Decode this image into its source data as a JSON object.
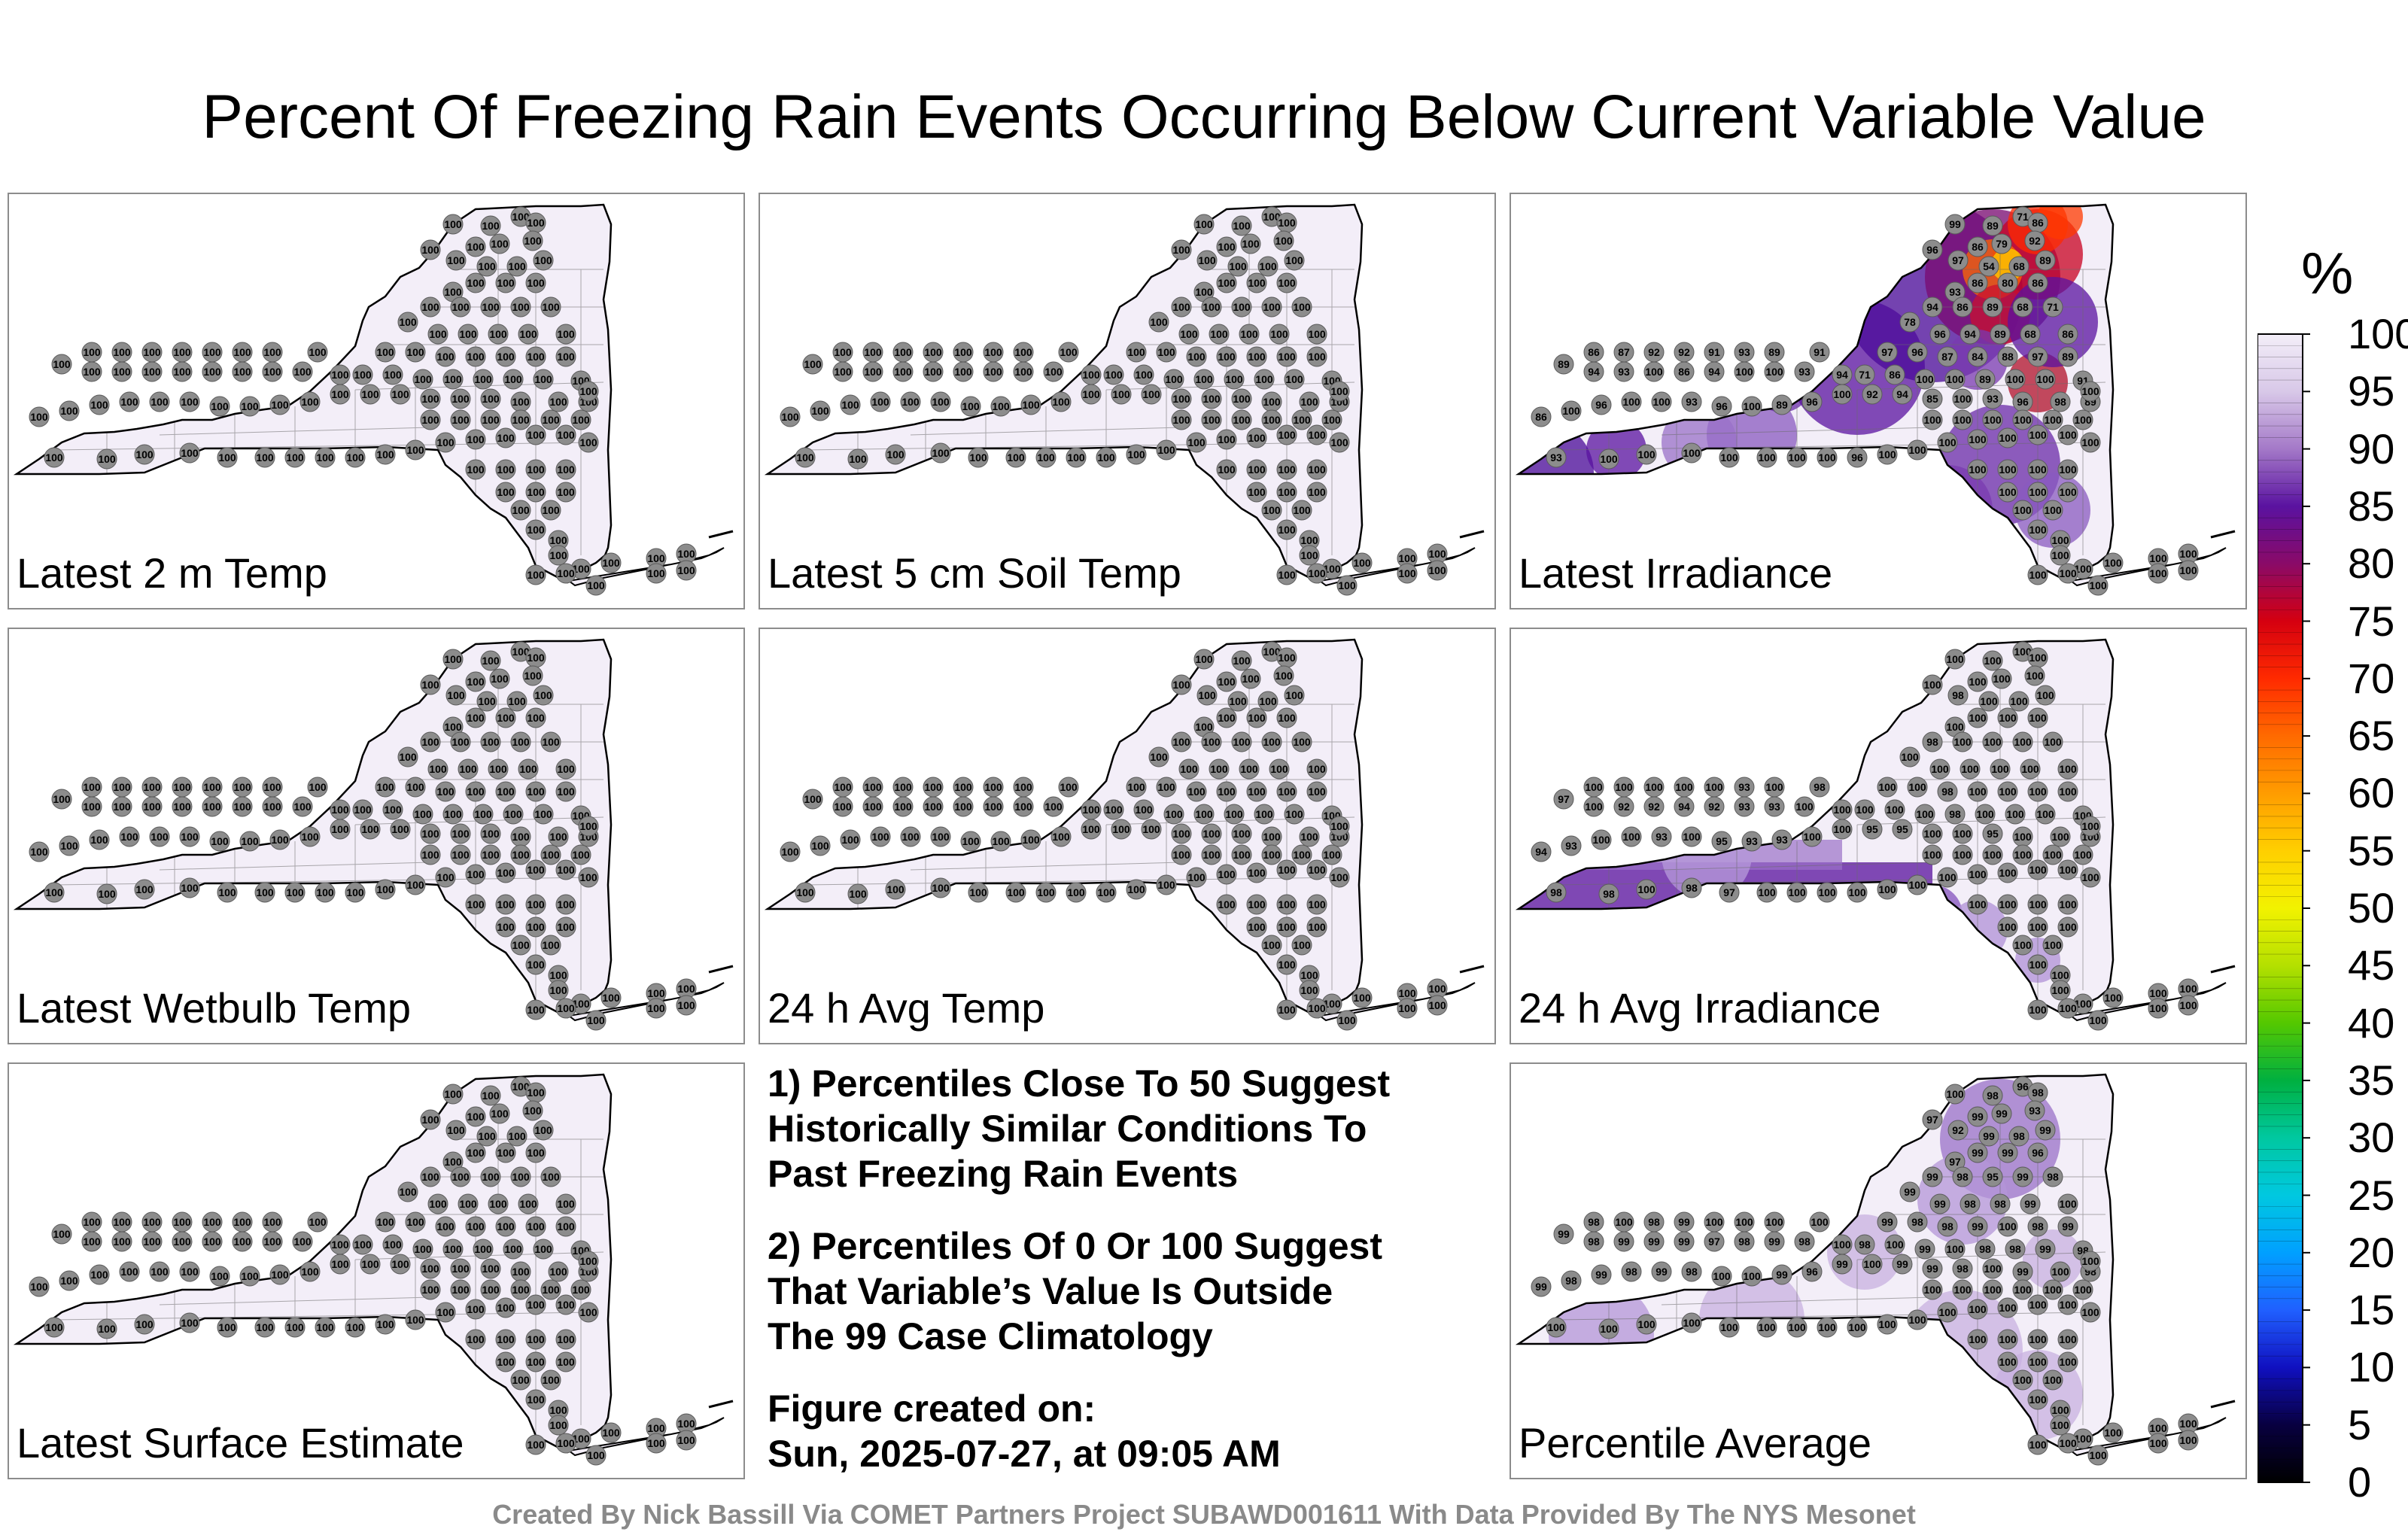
{
  "title": "Percent Of Freezing Rain Events Occurring Below Current Variable Value",
  "panels": [
    {
      "label": "Latest 2 m Temp",
      "values": [
        100,
        100,
        100,
        100,
        100,
        100,
        100,
        100,
        100,
        100,
        100,
        100,
        100,
        100,
        100,
        100,
        100,
        100,
        100,
        100,
        100,
        100,
        100,
        100,
        100,
        100,
        100,
        100,
        100,
        100,
        100,
        100,
        100,
        100,
        100,
        100,
        100,
        100,
        100,
        100,
        100,
        100,
        100,
        100,
        100,
        100,
        100,
        100,
        100,
        100,
        100,
        100,
        100,
        100,
        100,
        100,
        100,
        100,
        100,
        100,
        100,
        100,
        100,
        100,
        100,
        100,
        100,
        100,
        100,
        100,
        100,
        100,
        100,
        100,
        100,
        100,
        100,
        100,
        100,
        100,
        100,
        100,
        100,
        100,
        100,
        100,
        100,
        100,
        100,
        100,
        100,
        100,
        100,
        100,
        100,
        100,
        100,
        100,
        100,
        100,
        100,
        100,
        100,
        100,
        100,
        100,
        100,
        100,
        100,
        100,
        100,
        100,
        100,
        100,
        100,
        100,
        100,
        100,
        100,
        100,
        100,
        100,
        100,
        100
      ]
    },
    {
      "label": "Latest 5 cm Soil Temp",
      "values": [
        100,
        100,
        100,
        100,
        100,
        100,
        100,
        100,
        100,
        100,
        100,
        100,
        100,
        100,
        100,
        100,
        100,
        100,
        100,
        100,
        100,
        100,
        100,
        100,
        100,
        100,
        100,
        100,
        100,
        100,
        100,
        100,
        100,
        100,
        100,
        100,
        100,
        100,
        100,
        100,
        100,
        100,
        100,
        100,
        100,
        100,
        100,
        100,
        100,
        100,
        100,
        100,
        100,
        100,
        100,
        100,
        100,
        100,
        100,
        100,
        100,
        100,
        100,
        100,
        100,
        100,
        100,
        100,
        100,
        100,
        100,
        100,
        100,
        100,
        100,
        100,
        100,
        100,
        100,
        100,
        100,
        100,
        100,
        100,
        100,
        100,
        100,
        100,
        100,
        100,
        100,
        100,
        100,
        100,
        100,
        100,
        100,
        100,
        100,
        100,
        100,
        100,
        100,
        100,
        100,
        100,
        100,
        100,
        100,
        100,
        100,
        100,
        100,
        100,
        100,
        100,
        100,
        100,
        100,
        100,
        100,
        100,
        100,
        100
      ]
    },
    {
      "label": "Latest Irradiance",
      "values": [
        99,
        89,
        71,
        86,
        86,
        96,
        79,
        92,
        97,
        54,
        68,
        89,
        93,
        86,
        80,
        86,
        94,
        86,
        89,
        68,
        71,
        78,
        96,
        94,
        89,
        68,
        86,
        97,
        96,
        87,
        84,
        88,
        97,
        89,
        71,
        86,
        100,
        100,
        89,
        100,
        100,
        91,
        100,
        92,
        94,
        85,
        100,
        93,
        96,
        98,
        89,
        96,
        89,
        100,
        96,
        93,
        100,
        100,
        96,
        100,
        86,
        94,
        93,
        100,
        86,
        94,
        100,
        100,
        93,
        89,
        86,
        87,
        92,
        92,
        91,
        93,
        89,
        91,
        94,
        93,
        100,
        100,
        100,
        100,
        100,
        100,
        100,
        96,
        100,
        100,
        100,
        100,
        100,
        100,
        100,
        100,
        100,
        100,
        100,
        100,
        100,
        100,
        100,
        100,
        100,
        100,
        100,
        100,
        100,
        100,
        100,
        100,
        100,
        100,
        100,
        100,
        100,
        100,
        100,
        100,
        100,
        100,
        100,
        100
      ]
    },
    {
      "label": "Latest Wetbulb Temp",
      "values": [
        100,
        100,
        100,
        100,
        100,
        100,
        100,
        100,
        100,
        100,
        100,
        100,
        100,
        100,
        100,
        100,
        100,
        100,
        100,
        100,
        100,
        100,
        100,
        100,
        100,
        100,
        100,
        100,
        100,
        100,
        100,
        100,
        100,
        100,
        100,
        100,
        100,
        100,
        100,
        100,
        100,
        100,
        100,
        100,
        100,
        100,
        100,
        100,
        100,
        100,
        100,
        100,
        100,
        100,
        100,
        100,
        100,
        100,
        100,
        100,
        100,
        100,
        100,
        100,
        100,
        100,
        100,
        100,
        100,
        100,
        100,
        100,
        100,
        100,
        100,
        100,
        100,
        100,
        100,
        100,
        100,
        100,
        100,
        100,
        100,
        100,
        100,
        100,
        100,
        100,
        100,
        100,
        100,
        100,
        100,
        100,
        100,
        100,
        100,
        100,
        100,
        100,
        100,
        100,
        100,
        100,
        100,
        100,
        100,
        100,
        100,
        100,
        100,
        100,
        100,
        100,
        100,
        100,
        100,
        100,
        100,
        100,
        100,
        100
      ]
    },
    {
      "label": "24 h Avg Temp",
      "values": [
        100,
        100,
        100,
        100,
        100,
        100,
        100,
        100,
        100,
        100,
        100,
        100,
        100,
        100,
        100,
        100,
        100,
        100,
        100,
        100,
        100,
        100,
        100,
        100,
        100,
        100,
        100,
        100,
        100,
        100,
        100,
        100,
        100,
        100,
        100,
        100,
        100,
        100,
        100,
        100,
        100,
        100,
        100,
        100,
        100,
        100,
        100,
        100,
        100,
        100,
        100,
        100,
        100,
        100,
        100,
        100,
        100,
        100,
        100,
        100,
        100,
        100,
        100,
        100,
        100,
        100,
        100,
        100,
        100,
        100,
        100,
        100,
        100,
        100,
        100,
        100,
        100,
        100,
        100,
        100,
        100,
        100,
        100,
        100,
        100,
        100,
        100,
        100,
        100,
        100,
        100,
        100,
        100,
        100,
        100,
        100,
        100,
        100,
        100,
        100,
        100,
        100,
        100,
        100,
        100,
        100,
        100,
        100,
        100,
        100,
        100,
        100,
        100,
        100,
        100,
        100,
        100,
        100,
        100,
        100,
        100,
        100,
        100,
        100
      ]
    },
    {
      "label": "24 h Avg Irradiance",
      "values": [
        100,
        100,
        100,
        100,
        100,
        100,
        100,
        100,
        98,
        100,
        100,
        100,
        100,
        100,
        100,
        100,
        98,
        100,
        100,
        100,
        100,
        100,
        100,
        100,
        100,
        100,
        100,
        100,
        100,
        98,
        100,
        100,
        100,
        100,
        100,
        100,
        100,
        98,
        100,
        100,
        100,
        100,
        100,
        95,
        95,
        100,
        100,
        95,
        100,
        100,
        100,
        100,
        93,
        93,
        95,
        100,
        93,
        100,
        100,
        93,
        94,
        100,
        92,
        92,
        94,
        92,
        93,
        93,
        100,
        97,
        100,
        100,
        100,
        100,
        100,
        93,
        100,
        98,
        100,
        98,
        98,
        100,
        98,
        97,
        100,
        100,
        100,
        100,
        100,
        100,
        100,
        100,
        100,
        100,
        100,
        100,
        100,
        100,
        100,
        100,
        100,
        100,
        100,
        100,
        100,
        100,
        100,
        100,
        100,
        100,
        100,
        100,
        100,
        100,
        100,
        100,
        100,
        100,
        100,
        100,
        100,
        100,
        100,
        100
      ]
    },
    {
      "label": "Latest Surface Estimate",
      "values": [
        100,
        100,
        100,
        100,
        100,
        100,
        100,
        100,
        100,
        100,
        100,
        100,
        100,
        100,
        100,
        100,
        100,
        100,
        100,
        100,
        100,
        100,
        100,
        100,
        100,
        100,
        100,
        100,
        100,
        100,
        100,
        100,
        100,
        100,
        100,
        100,
        100,
        100,
        100,
        100,
        100,
        100,
        100,
        100,
        100,
        100,
        100,
        100,
        100,
        100,
        100,
        100,
        100,
        100,
        100,
        100,
        100,
        100,
        100,
        100,
        100,
        100,
        100,
        100,
        100,
        100,
        100,
        100,
        100,
        100,
        100,
        100,
        100,
        100,
        100,
        100,
        100,
        100,
        100,
        100,
        100,
        100,
        100,
        100,
        100,
        100,
        100,
        100,
        100,
        100,
        100,
        100,
        100,
        100,
        100,
        100,
        100,
        100,
        100,
        100,
        100,
        100,
        100,
        100,
        100,
        100,
        100,
        100,
        100,
        100,
        100,
        100,
        100,
        100,
        100,
        100,
        100,
        100,
        100,
        100,
        100,
        100,
        100,
        100
      ]
    },
    {
      "label": "Percentile Average",
      "values": [
        100,
        98,
        96,
        98,
        99,
        97,
        99,
        93,
        92,
        99,
        98,
        99,
        97,
        99,
        99,
        96,
        99,
        98,
        95,
        99,
        98,
        99,
        99,
        98,
        98,
        99,
        100,
        99,
        98,
        98,
        99,
        100,
        98,
        99,
        98,
        100,
        99,
        100,
        98,
        98,
        99,
        98,
        99,
        100,
        99,
        99,
        98,
        100,
        99,
        100,
        98,
        96,
        99,
        100,
        100,
        98,
        99,
        98,
        99,
        98,
        99,
        98,
        99,
        99,
        99,
        97,
        98,
        99,
        98,
        99,
        98,
        100,
        98,
        99,
        100,
        100,
        100,
        100,
        100,
        100,
        100,
        100,
        100,
        100,
        100,
        100,
        100,
        100,
        100,
        100,
        100,
        100,
        100,
        100,
        100,
        100,
        100,
        100,
        100,
        100,
        100,
        100,
        100,
        100,
        100,
        100,
        100,
        100,
        100,
        100,
        100,
        100,
        100,
        100,
        100,
        100,
        100,
        100,
        100,
        100,
        100,
        100,
        100,
        100
      ]
    }
  ],
  "notes": {
    "note1": "1) Percentiles Close To 50 Suggest\nHistorically Similar Conditions To\nPast Freezing Rain Events",
    "note2": "2) Percentiles Of 0 Or 100 Suggest\nThat Variable’s Value Is Outside\nThe 99 Case Climatology",
    "note3": "Figure created on:\nSun, 2025-07-27, at 09:05 AM"
  },
  "colorbar": {
    "unit": "%",
    "ticks": [
      "100",
      "95",
      "90",
      "85",
      "80",
      "75",
      "70",
      "65",
      "60",
      "55",
      "50",
      "45",
      "40",
      "35",
      "30",
      "25",
      "20",
      "15",
      "10",
      "5",
      "0"
    ],
    "colors": [
      "#f3eef8",
      "#d8c8e8",
      "#a479c8",
      "#5a12a0",
      "#8a0a68",
      "#d50010",
      "#ff2a00",
      "#ff6a00",
      "#ff9c00",
      "#ffcf00",
      "#f2f200",
      "#b4e000",
      "#54c800",
      "#00b040",
      "#00c8a0",
      "#00c8e0",
      "#00a0ff",
      "#2060ff",
      "#1010c0",
      "#080040",
      "#000000"
    ]
  },
  "credit": "Created By Nick Bassill Via COMET Partners Project SUBAWD001611 With Data Provided By The NYS Mesonet"
}
